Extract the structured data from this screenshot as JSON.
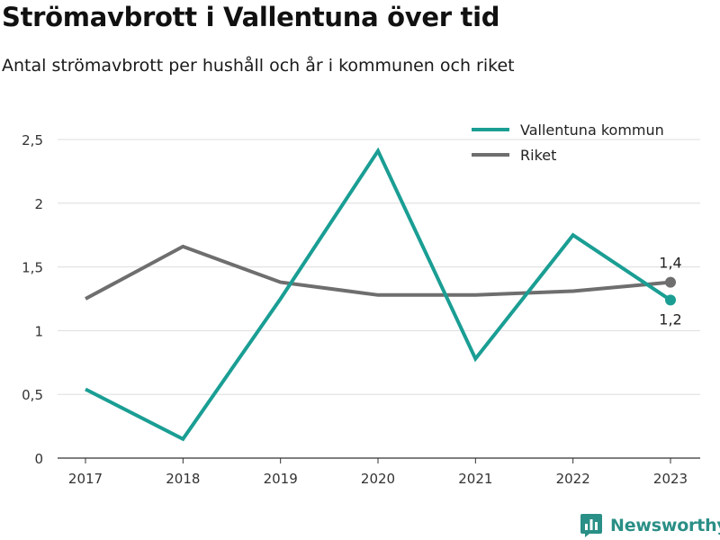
{
  "header": {
    "title": "Strömavbrott i Vallentuna över tid",
    "subtitle": "Antal strömavbrott per hushåll och år i kommunen och riket"
  },
  "branding": {
    "name": "Newsworthy",
    "color": "#2a8f86"
  },
  "chart_data": {
    "type": "line",
    "title": "Strömavbrott i Vallentuna över tid",
    "subtitle": "Antal strömavbrott per hushåll och år i kommunen och riket",
    "xlabel": "",
    "ylabel": "",
    "x": [
      "2017",
      "2018",
      "2019",
      "2020",
      "2021",
      "2022",
      "2023"
    ],
    "ylim": [
      0,
      2.5
    ],
    "yticks": [
      0,
      0.5,
      1,
      1.5,
      2,
      2.5
    ],
    "ytick_labels": [
      "0",
      "0,5",
      "1",
      "1,5",
      "2",
      "2,5"
    ],
    "grid": true,
    "legend": "top-right",
    "series": [
      {
        "name": "Vallentuna kommun",
        "color": "#1a9e94",
        "values": [
          0.54,
          0.15,
          1.25,
          2.41,
          0.78,
          1.75,
          1.24
        ],
        "end_label": "1,2"
      },
      {
        "name": "Riket",
        "color": "#6e6e6e",
        "values": [
          1.25,
          1.66,
          1.38,
          1.28,
          1.28,
          1.31,
          1.38
        ],
        "end_label": "1,4"
      }
    ]
  }
}
